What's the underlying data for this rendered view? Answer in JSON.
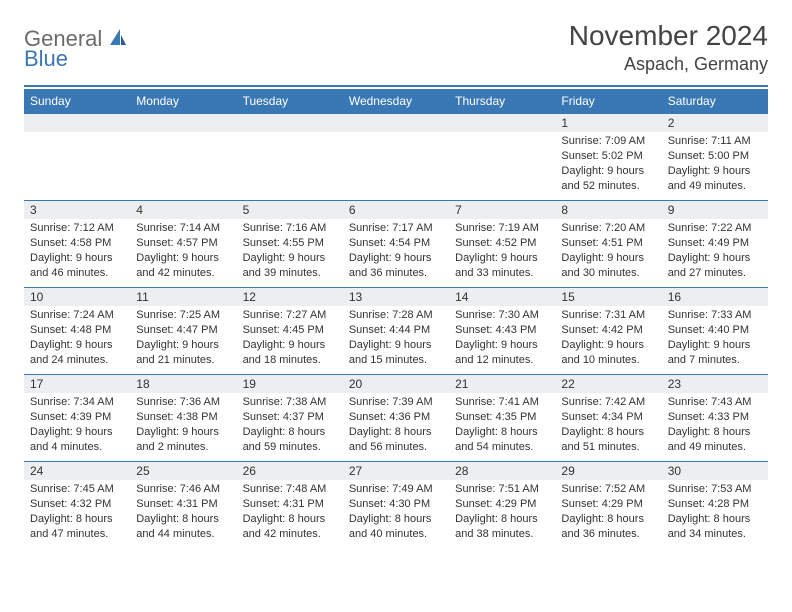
{
  "brand": {
    "word1": "General",
    "word2": "Blue"
  },
  "title": {
    "month": "November 2024",
    "location": "Aspach, Germany"
  },
  "colors": {
    "accent": "#3a78b5",
    "header_bg": "#3a78b5",
    "header_fg": "#ffffff",
    "daynum_bg": "#eceeef",
    "text": "#333333",
    "background": "#ffffff",
    "logo_gray": "#6b6b6b"
  },
  "typography": {
    "title_fontsize": 28,
    "location_fontsize": 18,
    "dayheader_fontsize": 12,
    "cell_fontsize": 11
  },
  "calendar": {
    "type": "table",
    "columns": [
      "Sunday",
      "Monday",
      "Tuesday",
      "Wednesday",
      "Thursday",
      "Friday",
      "Saturday"
    ],
    "weeks": [
      [
        null,
        null,
        null,
        null,
        null,
        {
          "n": "1",
          "sunrise": "Sunrise: 7:09 AM",
          "sunset": "Sunset: 5:02 PM",
          "day1": "Daylight: 9 hours",
          "day2": "and 52 minutes."
        },
        {
          "n": "2",
          "sunrise": "Sunrise: 7:11 AM",
          "sunset": "Sunset: 5:00 PM",
          "day1": "Daylight: 9 hours",
          "day2": "and 49 minutes."
        }
      ],
      [
        {
          "n": "3",
          "sunrise": "Sunrise: 7:12 AM",
          "sunset": "Sunset: 4:58 PM",
          "day1": "Daylight: 9 hours",
          "day2": "and 46 minutes."
        },
        {
          "n": "4",
          "sunrise": "Sunrise: 7:14 AM",
          "sunset": "Sunset: 4:57 PM",
          "day1": "Daylight: 9 hours",
          "day2": "and 42 minutes."
        },
        {
          "n": "5",
          "sunrise": "Sunrise: 7:16 AM",
          "sunset": "Sunset: 4:55 PM",
          "day1": "Daylight: 9 hours",
          "day2": "and 39 minutes."
        },
        {
          "n": "6",
          "sunrise": "Sunrise: 7:17 AM",
          "sunset": "Sunset: 4:54 PM",
          "day1": "Daylight: 9 hours",
          "day2": "and 36 minutes."
        },
        {
          "n": "7",
          "sunrise": "Sunrise: 7:19 AM",
          "sunset": "Sunset: 4:52 PM",
          "day1": "Daylight: 9 hours",
          "day2": "and 33 minutes."
        },
        {
          "n": "8",
          "sunrise": "Sunrise: 7:20 AM",
          "sunset": "Sunset: 4:51 PM",
          "day1": "Daylight: 9 hours",
          "day2": "and 30 minutes."
        },
        {
          "n": "9",
          "sunrise": "Sunrise: 7:22 AM",
          "sunset": "Sunset: 4:49 PM",
          "day1": "Daylight: 9 hours",
          "day2": "and 27 minutes."
        }
      ],
      [
        {
          "n": "10",
          "sunrise": "Sunrise: 7:24 AM",
          "sunset": "Sunset: 4:48 PM",
          "day1": "Daylight: 9 hours",
          "day2": "and 24 minutes."
        },
        {
          "n": "11",
          "sunrise": "Sunrise: 7:25 AM",
          "sunset": "Sunset: 4:47 PM",
          "day1": "Daylight: 9 hours",
          "day2": "and 21 minutes."
        },
        {
          "n": "12",
          "sunrise": "Sunrise: 7:27 AM",
          "sunset": "Sunset: 4:45 PM",
          "day1": "Daylight: 9 hours",
          "day2": "and 18 minutes."
        },
        {
          "n": "13",
          "sunrise": "Sunrise: 7:28 AM",
          "sunset": "Sunset: 4:44 PM",
          "day1": "Daylight: 9 hours",
          "day2": "and 15 minutes."
        },
        {
          "n": "14",
          "sunrise": "Sunrise: 7:30 AM",
          "sunset": "Sunset: 4:43 PM",
          "day1": "Daylight: 9 hours",
          "day2": "and 12 minutes."
        },
        {
          "n": "15",
          "sunrise": "Sunrise: 7:31 AM",
          "sunset": "Sunset: 4:42 PM",
          "day1": "Daylight: 9 hours",
          "day2": "and 10 minutes."
        },
        {
          "n": "16",
          "sunrise": "Sunrise: 7:33 AM",
          "sunset": "Sunset: 4:40 PM",
          "day1": "Daylight: 9 hours",
          "day2": "and 7 minutes."
        }
      ],
      [
        {
          "n": "17",
          "sunrise": "Sunrise: 7:34 AM",
          "sunset": "Sunset: 4:39 PM",
          "day1": "Daylight: 9 hours",
          "day2": "and 4 minutes."
        },
        {
          "n": "18",
          "sunrise": "Sunrise: 7:36 AM",
          "sunset": "Sunset: 4:38 PM",
          "day1": "Daylight: 9 hours",
          "day2": "and 2 minutes."
        },
        {
          "n": "19",
          "sunrise": "Sunrise: 7:38 AM",
          "sunset": "Sunset: 4:37 PM",
          "day1": "Daylight: 8 hours",
          "day2": "and 59 minutes."
        },
        {
          "n": "20",
          "sunrise": "Sunrise: 7:39 AM",
          "sunset": "Sunset: 4:36 PM",
          "day1": "Daylight: 8 hours",
          "day2": "and 56 minutes."
        },
        {
          "n": "21",
          "sunrise": "Sunrise: 7:41 AM",
          "sunset": "Sunset: 4:35 PM",
          "day1": "Daylight: 8 hours",
          "day2": "and 54 minutes."
        },
        {
          "n": "22",
          "sunrise": "Sunrise: 7:42 AM",
          "sunset": "Sunset: 4:34 PM",
          "day1": "Daylight: 8 hours",
          "day2": "and 51 minutes."
        },
        {
          "n": "23",
          "sunrise": "Sunrise: 7:43 AM",
          "sunset": "Sunset: 4:33 PM",
          "day1": "Daylight: 8 hours",
          "day2": "and 49 minutes."
        }
      ],
      [
        {
          "n": "24",
          "sunrise": "Sunrise: 7:45 AM",
          "sunset": "Sunset: 4:32 PM",
          "day1": "Daylight: 8 hours",
          "day2": "and 47 minutes."
        },
        {
          "n": "25",
          "sunrise": "Sunrise: 7:46 AM",
          "sunset": "Sunset: 4:31 PM",
          "day1": "Daylight: 8 hours",
          "day2": "and 44 minutes."
        },
        {
          "n": "26",
          "sunrise": "Sunrise: 7:48 AM",
          "sunset": "Sunset: 4:31 PM",
          "day1": "Daylight: 8 hours",
          "day2": "and 42 minutes."
        },
        {
          "n": "27",
          "sunrise": "Sunrise: 7:49 AM",
          "sunset": "Sunset: 4:30 PM",
          "day1": "Daylight: 8 hours",
          "day2": "and 40 minutes."
        },
        {
          "n": "28",
          "sunrise": "Sunrise: 7:51 AM",
          "sunset": "Sunset: 4:29 PM",
          "day1": "Daylight: 8 hours",
          "day2": "and 38 minutes."
        },
        {
          "n": "29",
          "sunrise": "Sunrise: 7:52 AM",
          "sunset": "Sunset: 4:29 PM",
          "day1": "Daylight: 8 hours",
          "day2": "and 36 minutes."
        },
        {
          "n": "30",
          "sunrise": "Sunrise: 7:53 AM",
          "sunset": "Sunset: 4:28 PM",
          "day1": "Daylight: 8 hours",
          "day2": "and 34 minutes."
        }
      ]
    ]
  }
}
